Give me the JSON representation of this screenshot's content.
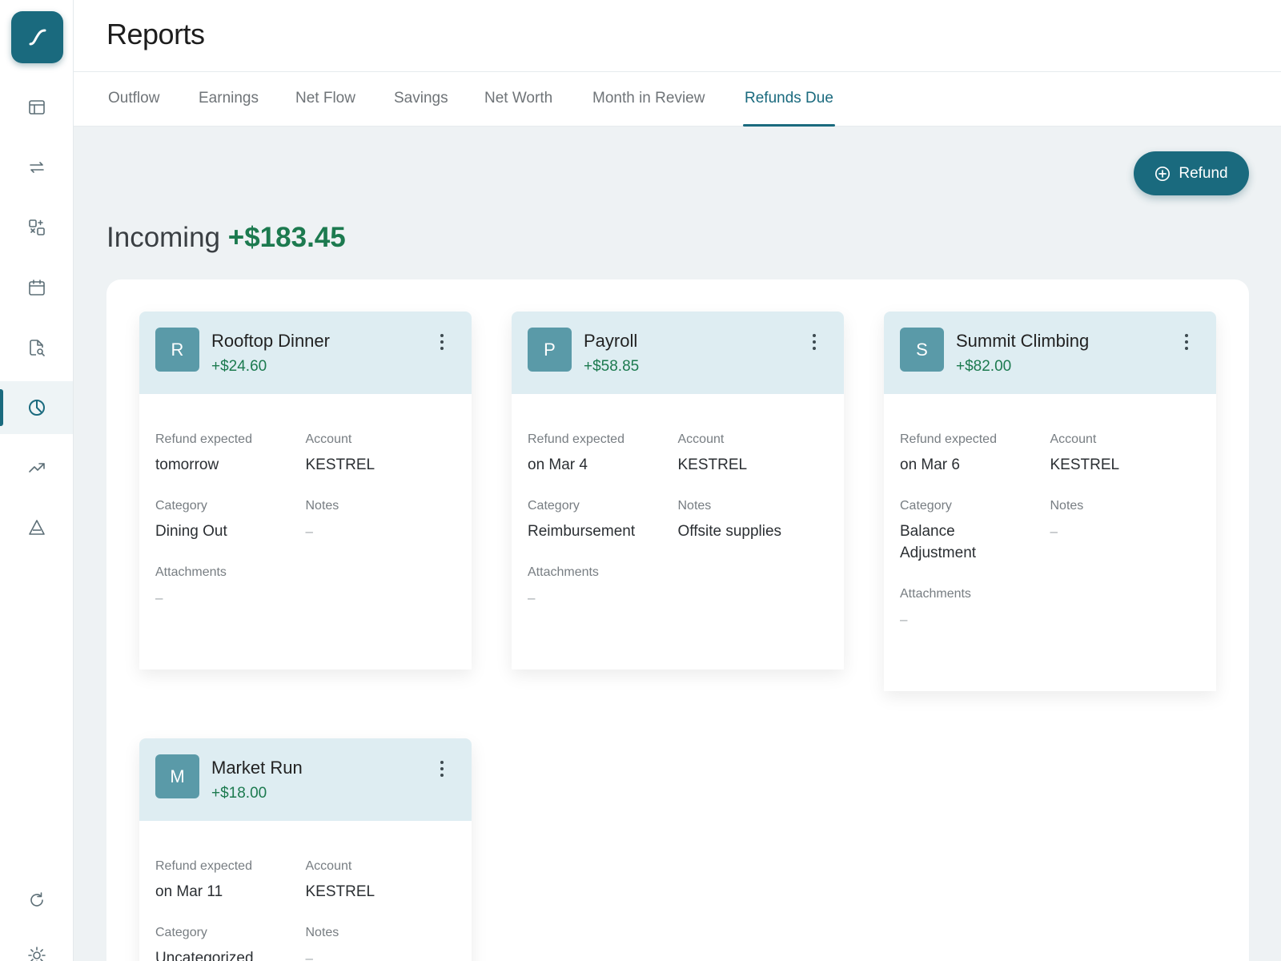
{
  "sidebar": {
    "logo_icon": "logo-icon",
    "items": [
      {
        "icon": "layout-icon",
        "active": false
      },
      {
        "icon": "transfer-arrows-icon",
        "active": false
      },
      {
        "icon": "categories-icon",
        "active": false
      },
      {
        "icon": "calendar-icon",
        "active": false
      },
      {
        "icon": "document-search-icon",
        "active": false
      },
      {
        "icon": "reports-clock-icon",
        "active": true
      },
      {
        "icon": "trending-up-icon",
        "active": false
      },
      {
        "icon": "triangle-icon",
        "active": false
      }
    ],
    "bottom_items": [
      {
        "icon": "refresh-icon"
      },
      {
        "icon": "sun-icon"
      }
    ]
  },
  "header": {
    "title": "Reports"
  },
  "tabs": [
    {
      "label": "Outflow",
      "active": false
    },
    {
      "label": "Earnings",
      "active": false
    },
    {
      "label": "Net Flow",
      "active": false
    },
    {
      "label": "Savings",
      "active": false
    },
    {
      "label": "Net Worth",
      "active": false
    },
    {
      "label": "Month in Review",
      "active": false
    },
    {
      "label": "Refunds Due",
      "active": true
    }
  ],
  "actions": {
    "refund_label": "Refund"
  },
  "summary": {
    "label": "Incoming",
    "amount": "+$183.45"
  },
  "labels": {
    "refund_expected": "Refund expected",
    "account": "Account",
    "category": "Category",
    "notes": "Notes",
    "attachments": "Attachments"
  },
  "cards": [
    {
      "initial": "R",
      "name": "Rooftop Dinner",
      "amount": "+$24.60",
      "refund_expected": "tomorrow",
      "account": "KESTREL",
      "category": "Dining Out",
      "notes": "–",
      "attachments": "–"
    },
    {
      "initial": "P",
      "name": "Payroll",
      "amount": "+$58.85",
      "refund_expected": "on Mar 4",
      "account": "KESTREL",
      "category": "Reimbursement",
      "notes": "Offsite supplies",
      "attachments": "–"
    },
    {
      "initial": "S",
      "name": "Summit Climbing",
      "amount": "+$82.00",
      "refund_expected": "on Mar 6",
      "account": "KESTREL",
      "category": "Balance Adjustment",
      "notes": "–",
      "attachments": "–"
    },
    {
      "initial": "M",
      "name": "Market Run",
      "amount": "+$18.00",
      "refund_expected": "on Mar 11",
      "account": "KESTREL",
      "category": "Uncategorized",
      "notes": "–",
      "attachments": "–"
    }
  ],
  "colors": {
    "brand": "#1a6a7e",
    "positive": "#1c7a4f",
    "card_header": "#deedf2",
    "avatar": "#5a9aa8"
  }
}
